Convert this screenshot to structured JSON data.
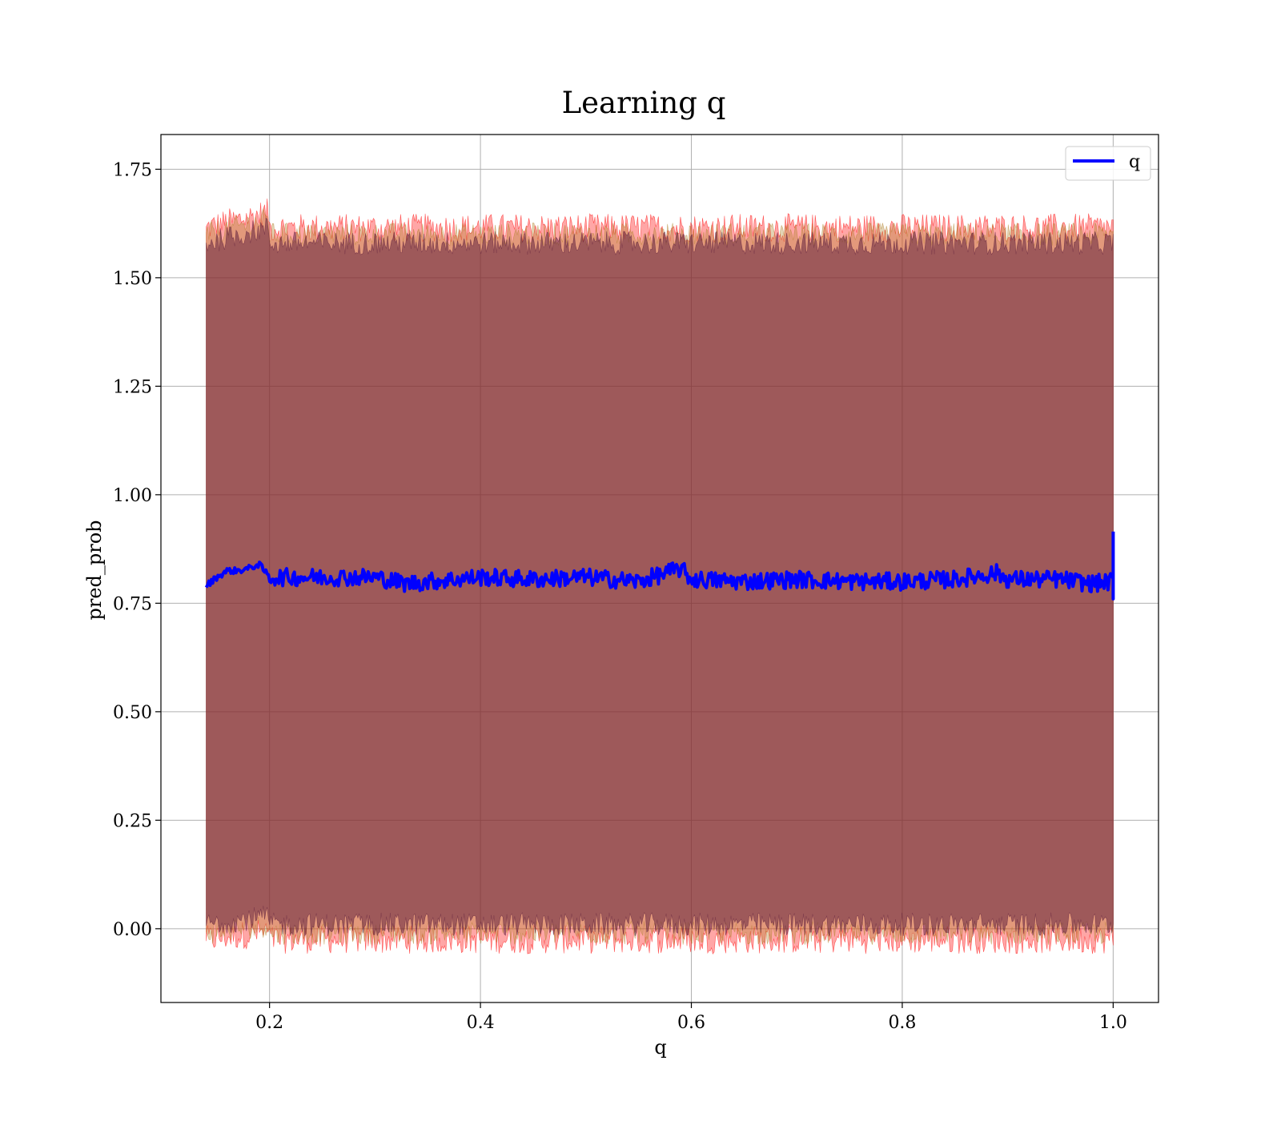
{
  "chart_data": {
    "type": "line",
    "title": "Learning q",
    "xlabel": "q",
    "ylabel": "pred_prob",
    "xlim": [
      0.097,
      1.043
    ],
    "ylim": [
      -0.17,
      1.83
    ],
    "xticks": [
      0.2,
      0.4,
      0.6,
      0.8,
      1.0
    ],
    "xtick_labels": [
      "0.2",
      "0.4",
      "0.6",
      "0.8",
      "1.0"
    ],
    "yticks": [
      0.0,
      0.25,
      0.5,
      0.75,
      1.0,
      1.25,
      1.5,
      1.75
    ],
    "ytick_labels": [
      "0.00",
      "0.25",
      "0.50",
      "0.75",
      "1.00",
      "1.25",
      "1.50",
      "1.75"
    ],
    "grid": true,
    "legend": {
      "position": "top-right",
      "entries": [
        "q"
      ]
    },
    "series": [
      {
        "name": "q",
        "color": "#0000ff",
        "x": [
          0.14,
          0.15,
          0.16,
          0.17,
          0.18,
          0.19,
          0.2,
          0.22,
          0.25,
          0.3,
          0.33,
          0.35,
          0.4,
          0.45,
          0.5,
          0.55,
          0.59,
          0.6,
          0.65,
          0.7,
          0.75,
          0.8,
          0.85,
          0.89,
          0.9,
          0.95,
          0.98,
          1.0,
          1.0
        ],
        "values": [
          0.79,
          0.81,
          0.825,
          0.825,
          0.83,
          0.84,
          0.81,
          0.81,
          0.81,
          0.81,
          0.795,
          0.8,
          0.81,
          0.805,
          0.81,
          0.8,
          0.83,
          0.805,
          0.8,
          0.805,
          0.8,
          0.8,
          0.805,
          0.82,
          0.805,
          0.805,
          0.795,
          0.8,
          0.915
        ],
        "noise": 0.04
      }
    ],
    "bands": [
      {
        "name": "outer",
        "color": "#ff0000",
        "opacity": 0.35,
        "upper": 1.615,
        "lower": -0.025,
        "spread": 0.055
      },
      {
        "name": "middle",
        "color": "#b0802a",
        "opacity": 0.35,
        "upper": 1.6,
        "lower": -0.01,
        "spread": 0.045
      },
      {
        "name": "inner",
        "color": "#5a1a3a",
        "opacity": 0.5,
        "upper": 1.58,
        "lower": 0.01,
        "spread": 0.045
      }
    ]
  }
}
